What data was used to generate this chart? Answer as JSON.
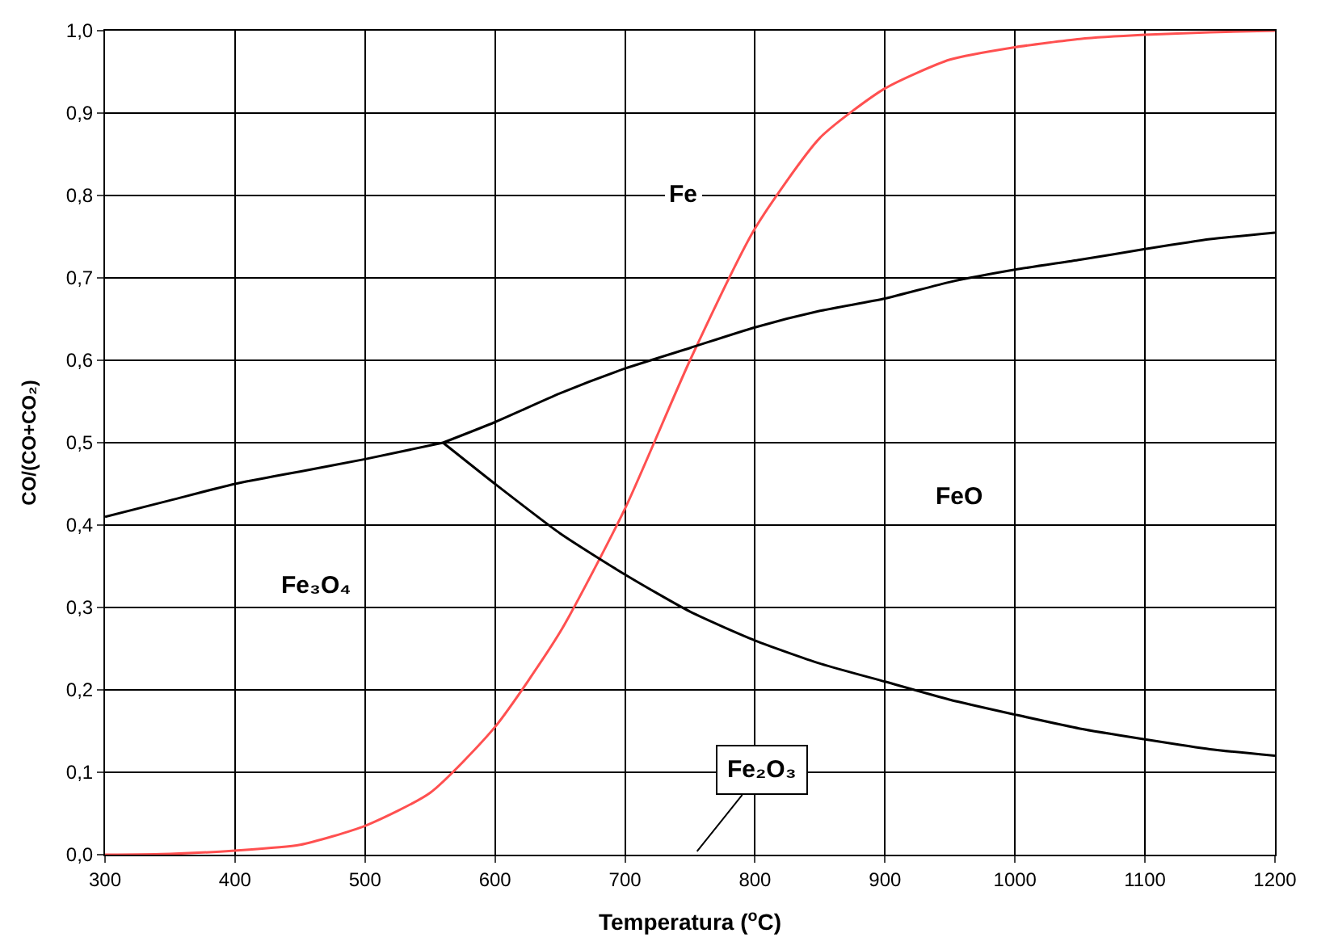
{
  "chart_data": {
    "type": "line",
    "xlabel": "Temperatura ($^{o}$C)",
    "ylabel": "CO/(CO+CO₂)",
    "xlim": [
      300,
      1200
    ],
    "xticks": [
      300,
      400,
      500,
      600,
      700,
      800,
      900,
      1000,
      1100,
      1200
    ],
    "ylim": [
      0,
      1
    ],
    "yticks": [
      {
        "value": 0,
        "label": "0,0"
      },
      {
        "value": 0.1,
        "label": "0,1"
      },
      {
        "value": 0.2,
        "label": "0,2"
      },
      {
        "value": 0.3,
        "label": "0,3"
      },
      {
        "value": 0.4,
        "label": "0,4"
      },
      {
        "value": 0.5,
        "label": "0,5"
      },
      {
        "value": 0.6,
        "label": "0,6"
      },
      {
        "value": 0.7,
        "label": "0,7"
      },
      {
        "value": 0.8,
        "label": "0,8"
      },
      {
        "value": 0.9,
        "label": "0,9"
      },
      {
        "value": 1,
        "label": "1,0"
      }
    ],
    "grid": true,
    "series": [
      {
        "color": "#ff5050",
        "x": [
          300,
          350,
          400,
          450,
          500,
          550,
          600,
          650,
          700,
          750,
          800,
          850,
          900,
          950,
          1000,
          1050,
          1100,
          1150,
          1200
        ],
        "values": [
          0,
          0.001,
          0.005,
          0.012,
          0.035,
          0.075,
          0.155,
          0.27,
          0.42,
          0.6,
          0.76,
          0.87,
          0.93,
          0.965,
          0.98,
          0.99,
          0.995,
          0.998,
          1.0
        ]
      },
      {
        "color": "#000000",
        "x": [
          300,
          350,
          400,
          450,
          500,
          560
        ],
        "values": [
          0.41,
          0.43,
          0.45,
          0.465,
          0.48,
          0.5
        ]
      },
      {
        "color": "#000000",
        "x": [
          560,
          600,
          650,
          700,
          750,
          800,
          850,
          900,
          950,
          1000,
          1050,
          1100,
          1150,
          1200
        ],
        "values": [
          0.5,
          0.525,
          0.56,
          0.59,
          0.615,
          0.64,
          0.66,
          0.675,
          0.695,
          0.71,
          0.722,
          0.735,
          0.747,
          0.755
        ]
      },
      {
        "color": "#000000",
        "x": [
          560,
          600,
          650,
          700,
          750,
          800,
          850,
          900,
          950,
          1000,
          1050,
          1100,
          1150,
          1200
        ],
        "values": [
          0.5,
          0.45,
          0.39,
          0.34,
          0.295,
          0.26,
          0.232,
          0.21,
          0.188,
          0.17,
          0.153,
          0.14,
          0.128,
          0.12
        ]
      }
    ],
    "annotations": [
      "Fe",
      "FeO",
      "Fe₃O₄",
      "Fe₂O₃"
    ]
  }
}
